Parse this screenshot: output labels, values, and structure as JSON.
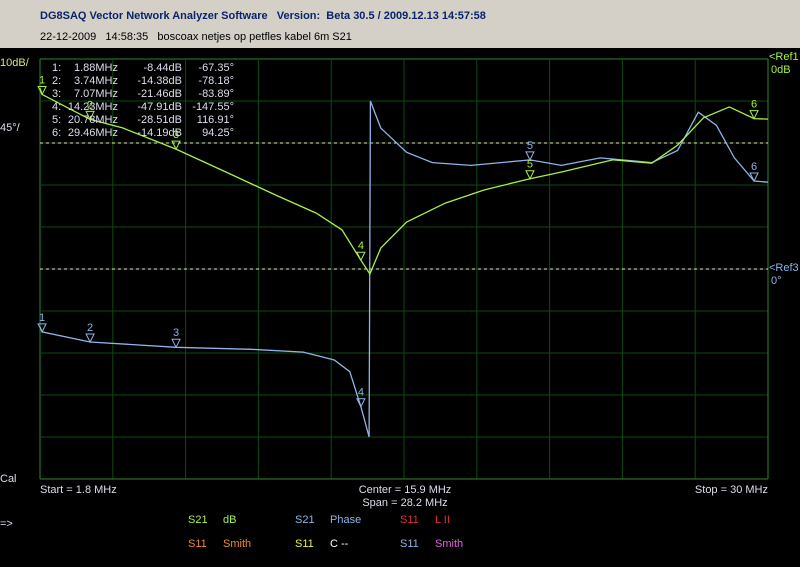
{
  "header": {
    "title": "DG8SAQ Vector Network Analyzer Software   Version:  Beta 30.5 / 2009.12.13 14:57:58",
    "info": "22-12-2009   14:58:35   boscoax netjes op petfles kabel 6m S21"
  },
  "plot": {
    "scale_db": "10dB/",
    "scale_phase": "45°/",
    "ref1": "<Ref1",
    "ref1_value": "0dB",
    "ref3": "<Ref3",
    "ref3_value": "0°",
    "cal": "Cal",
    "start": "Start = 1.8 MHz",
    "center": "Center = 15.9 MHz",
    "span": "Span = 28.2 MHz",
    "stop": "Stop = 30 MHz",
    "xlim": [
      1.8,
      30
    ],
    "db_lim": [
      -100,
      0
    ],
    "phase_lim": [
      -225,
      225
    ],
    "traces": [
      {
        "axis": "db",
        "color": "#a6f04a",
        "freq": [
          1.8,
          1.88,
          3.74,
          5,
          7.07,
          9,
          11,
          12.5,
          13.5,
          14.23,
          14.58,
          15,
          16,
          17.5,
          19,
          20.78,
          22,
          24,
          25.5,
          26.5,
          27.5,
          28.5,
          29.46,
          30
        ],
        "values": [
          -7,
          -8.44,
          -14.38,
          -16.4,
          -21.46,
          -26.9,
          -32.6,
          -36.7,
          -40.7,
          -47.91,
          -51.2,
          -45,
          -38.8,
          -34.3,
          -31.2,
          -28.51,
          -26.9,
          -24,
          -24.8,
          -20.5,
          -14,
          -11.4,
          -14.19,
          -14.3
        ]
      },
      {
        "axis": "phase",
        "color": "#8eb4e8",
        "freq": [
          1.8,
          1.88,
          3.74,
          7.07,
          10,
          12,
          13.2,
          13.8,
          14.23,
          14.55,
          14.6,
          15,
          16,
          17,
          18.5,
          20.78,
          22,
          23.5,
          25.5,
          26.5,
          27.3,
          28,
          28.7,
          29.46,
          30
        ],
        "values": [
          -62,
          -67.35,
          -78.18,
          -83.89,
          -86,
          -89,
          -97.5,
          -110,
          -147.55,
          -180,
          180,
          151,
          125,
          114,
          111,
          116.91,
          111,
          119,
          114,
          127,
          168,
          154,
          119,
          94.25,
          93
        ]
      }
    ],
    "markers": [
      {
        "label": "1",
        "row_label": "1:",
        "freq": 1.88,
        "freq_label": "1.88MHz",
        "db": -8.44,
        "db_label": "-8.44dB",
        "phase": -67.35,
        "phase_label": "-67.35°"
      },
      {
        "label": "2",
        "row_label": "2:",
        "freq": 3.74,
        "freq_label": "3.74MHz",
        "db": -14.38,
        "db_label": "-14.38dB",
        "phase": -78.18,
        "phase_label": "-78.18°"
      },
      {
        "label": "3",
        "row_label": "3:",
        "freq": 7.07,
        "freq_label": "7.07MHz",
        "db": -21.46,
        "db_label": "-21.46dB",
        "phase": -83.89,
        "phase_label": "-83.89°"
      },
      {
        "label": "4",
        "row_label": "4:",
        "freq": 14.23,
        "freq_label": "14.23MHz",
        "db": -47.91,
        "db_label": "-47.91dB",
        "phase": -147.55,
        "phase_label": "-147.55°"
      },
      {
        "label": "5",
        "row_label": "5:",
        "freq": 20.78,
        "freq_label": "20.78MHz",
        "db": -28.51,
        "db_label": "-28.51dB",
        "phase": 116.91,
        "phase_label": "116.91°"
      },
      {
        "label": "6",
        "row_label": "6:",
        "freq": 29.46,
        "freq_label": "29.46MHz",
        "db": -14.19,
        "db_label": "-14.19dB",
        "phase": 94.25,
        "phase_label": "94.25°"
      }
    ]
  },
  "legend": {
    "arrow": "=>",
    "entries": [
      {
        "param": "S21",
        "kind": "dB",
        "param_color": "#a6f04a",
        "kind_color": "#a6f04a"
      },
      {
        "param": "S21",
        "kind": "Phase",
        "param_color": "#8eb4e8",
        "kind_color": "#8eb4e8"
      },
      {
        "param": "S11",
        "kind": "L II",
        "param_color": "#e03030",
        "kind_color": "#e03030"
      },
      {
        "param": "S11",
        "kind": "Smith",
        "param_color": "#f08a30",
        "kind_color": "#f08a30"
      },
      {
        "param": "S11",
        "kind": "C --",
        "param_color": "#f0f040",
        "kind_color": "#ffffff"
      },
      {
        "param": "S11",
        "kind": "Smith",
        "param_color": "#8eb4e8",
        "kind_color": "#e060e0"
      }
    ]
  }
}
